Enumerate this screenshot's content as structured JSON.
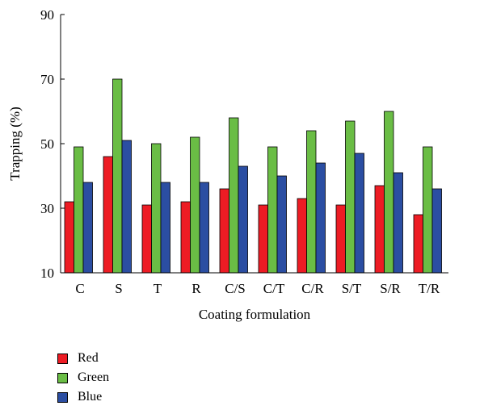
{
  "chart_data": {
    "type": "bar",
    "title": "",
    "xlabel": "Coating formulation",
    "ylabel": "Trapping (%)",
    "ylim": [
      10,
      90
    ],
    "yticks": [
      "10",
      "30",
      "50",
      "70",
      "90"
    ],
    "grid": false,
    "legend_position": "bottom-left",
    "categories": [
      "C",
      "S",
      "T",
      "R",
      "C/S",
      "C/T",
      "C/R",
      "S/T",
      "S/R",
      "T/R"
    ],
    "series": [
      {
        "name": "Red",
        "color": "#ed1c24",
        "values": [
          32,
          46,
          31,
          32,
          36,
          31,
          33,
          31,
          37,
          28
        ]
      },
      {
        "name": "Green",
        "color": "#6abd45",
        "values": [
          49,
          70,
          50,
          52,
          58,
          49,
          54,
          57,
          60,
          49
        ]
      },
      {
        "name": "Blue",
        "color": "#2b4ea2",
        "values": [
          38,
          51,
          38,
          38,
          43,
          40,
          44,
          47,
          41,
          36
        ]
      }
    ]
  }
}
